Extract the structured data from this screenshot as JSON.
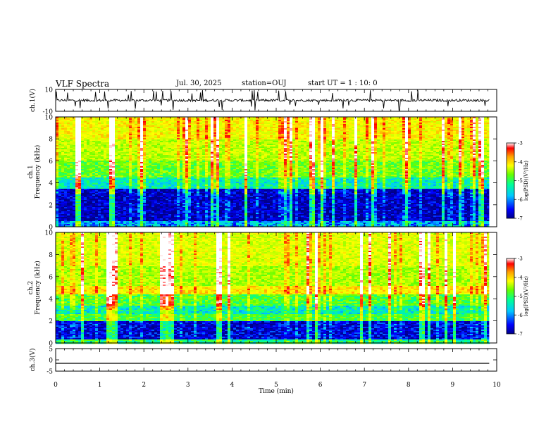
{
  "header": {
    "title": "VLF Spectra",
    "date": "Jul. 30, 2025",
    "station": "station=OUJ",
    "start_ut": "start UT =  1 : 10: 0"
  },
  "chart_data": [
    {
      "type": "line",
      "panel": "ch1-waveform",
      "ylabel": "ch.1(V)",
      "ylim": [
        -10,
        10
      ],
      "yticks": [
        "10",
        "-10"
      ],
      "baseline": 0,
      "trace_color": "#000000",
      "note_spikes": "frequent short positive and negative spikes"
    },
    {
      "type": "heatmap",
      "panel": "ch1-spectrogram",
      "ylabel_1": "ch.1",
      "ylabel_2": "Frequency (kHz)",
      "ylim": [
        0,
        10
      ],
      "yticks": [
        "0",
        "2",
        "4",
        "6",
        "8",
        "10"
      ],
      "bands": [
        {
          "from": 0,
          "to": 0.5,
          "level": -6.2
        },
        {
          "from": 0.5,
          "to": 3.5,
          "level": -6.8
        },
        {
          "from": 3.5,
          "to": 4.5,
          "level": -5.8
        },
        {
          "from": 4.5,
          "to": 6,
          "level": -5.2
        },
        {
          "from": 6,
          "to": 8,
          "level": -4.8
        },
        {
          "from": 8,
          "to": 10,
          "level": -4.4
        }
      ],
      "colorbar": {
        "label": "log(PSD)(V²/Hz)",
        "ticks": [
          "-3",
          "-4",
          "-5",
          "-6",
          "-7"
        ],
        "range": [
          -7,
          -3
        ]
      }
    },
    {
      "type": "heatmap",
      "panel": "ch2-spectrogram",
      "ylabel_1": "ch.2",
      "ylabel_2": "Frequency (kHz)",
      "ylim": [
        0,
        10
      ],
      "yticks": [
        "0",
        "2",
        "4",
        "6",
        "8",
        "10"
      ],
      "bands": [
        {
          "from": 0,
          "to": 0.3,
          "level": -5.6
        },
        {
          "from": 0.3,
          "to": 2.0,
          "level": -6.7
        },
        {
          "from": 2.0,
          "to": 2.6,
          "level": -5.4
        },
        {
          "from": 2.6,
          "to": 3.4,
          "level": -5.8
        },
        {
          "from": 3.4,
          "to": 4.4,
          "level": -5.3
        },
        {
          "from": 4.4,
          "to": 5.2,
          "level": -4.3
        },
        {
          "from": 5.2,
          "to": 7,
          "level": -4.9
        },
        {
          "from": 7,
          "to": 10,
          "level": -4.6
        }
      ],
      "colorbar": {
        "label": "log(PSD)(V²/Hz)",
        "ticks": [
          "-3",
          "-4",
          "-5",
          "-6",
          "-7"
        ],
        "range": [
          -7,
          -3
        ]
      }
    },
    {
      "type": "line",
      "panel": "ch3-waveform",
      "ylabel": "ch.3(V)",
      "ylim": [
        -5,
        5
      ],
      "yticks": [
        "5",
        "0",
        "-5"
      ],
      "values_constant": -1.5
    }
  ],
  "xaxis": {
    "label": "Time (min)",
    "xlim": [
      0,
      10
    ],
    "data_end": 9.83,
    "ticks": [
      "0",
      "1",
      "2",
      "3",
      "4",
      "5",
      "6",
      "7",
      "8",
      "9",
      "10"
    ]
  },
  "colors": {
    "colormap": [
      "#00008b",
      "#0000ff",
      "#00c8ff",
      "#00ff96",
      "#64ff00",
      "#c8ff00",
      "#ffff00",
      "#ffa000",
      "#ff0000",
      "#ffffff"
    ]
  }
}
